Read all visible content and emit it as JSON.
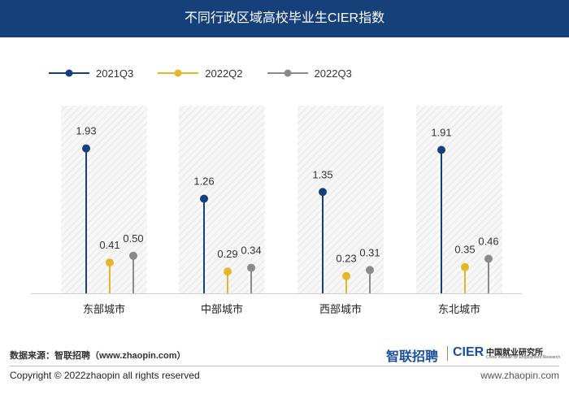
{
  "title": "不同行政区域高校毕业生CIER指数",
  "chart_data": {
    "type": "lollipop",
    "title": "不同行政区域高校毕业生CIER指数",
    "categories": [
      "东部城市",
      "中部城市",
      "西部城市",
      "东北城市"
    ],
    "series": [
      {
        "name": "2021Q3",
        "color": "#173f7c",
        "values": [
          1.93,
          1.26,
          1.35,
          1.91
        ]
      },
      {
        "name": "2022Q2",
        "color": "#e2b72a",
        "values": [
          0.41,
          0.29,
          0.23,
          0.35
        ]
      },
      {
        "name": "2022Q3",
        "color": "#8a8a8a",
        "values": [
          0.5,
          0.34,
          0.31,
          0.46
        ]
      }
    ],
    "ylim": [
      0,
      2.5
    ],
    "legend_position": "top-left",
    "grid": false
  },
  "footer": {
    "source": "数据来源：智联招聘（www.zhaopin.com）",
    "copyright": "Copyright ©  2022zhaopin all rights reserved",
    "website": "www.zhaopin.com"
  },
  "logos": {
    "zhaopin": "智联招聘",
    "cier": "CIER",
    "cier_cn": "中国就业研究所",
    "cier_en": "China Institute for Employment Research"
  }
}
